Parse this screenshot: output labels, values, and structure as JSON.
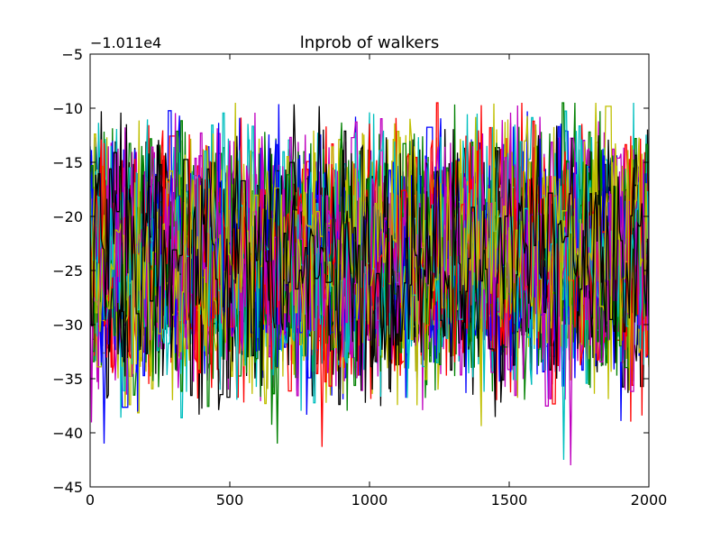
{
  "chart_data": {
    "type": "line",
    "title": "lnprob of walkers",
    "xlabel": "",
    "ylabel": "",
    "y_offset_label": "−1.011e4",
    "xlim": [
      0,
      2000
    ],
    "ylim": [
      -45,
      -5
    ],
    "x_ticks": [
      0,
      500,
      1000,
      1500,
      2000
    ],
    "x_tick_labels": [
      "0",
      "500",
      "1000",
      "1500",
      "2000"
    ],
    "y_ticks": [
      -45,
      -40,
      -35,
      -30,
      -25,
      -20,
      -15,
      -10,
      -5
    ],
    "y_tick_labels": [
      "−45",
      "−40",
      "−35",
      "−30",
      "−25",
      "−20",
      "−15",
      "−10",
      "−5"
    ],
    "grid": false,
    "legend": "none",
    "n_points_per_walker": 2001,
    "walker_value_range": [
      -43,
      -9.5
    ],
    "walker_typical_range": [
      -36,
      -12
    ],
    "walker_colors": [
      "#0000ff",
      "#008000",
      "#ff0000",
      "#00bfbf",
      "#bf00bf",
      "#bfbf00",
      "#000000"
    ],
    "n_walkers": 28,
    "notable_extremes": [
      {
        "x": 50,
        "y": -41
      },
      {
        "x": 670,
        "y": -41
      },
      {
        "x": 830,
        "y": -41.3
      },
      {
        "x": 1695,
        "y": -42.5
      },
      {
        "x": 1720,
        "y": -43
      },
      {
        "x": 1810,
        "y": -9.5
      },
      {
        "x": 820,
        "y": -9.8
      }
    ]
  }
}
